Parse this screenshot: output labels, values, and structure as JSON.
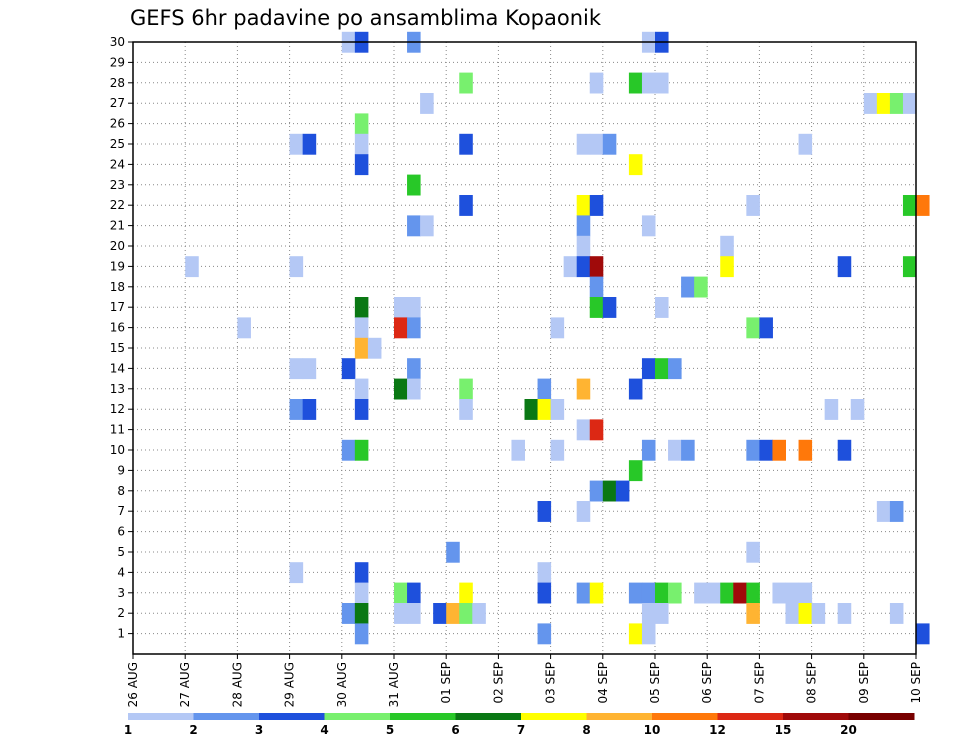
{
  "chart_data": {
    "type": "heatmap",
    "title": "GEFS 6hr padavine po ansamblima Kopaonik",
    "xlabel": "",
    "ylabel": "",
    "x_tick_labels": [
      "26 AUG",
      "27 AUG",
      "28 AUG",
      "29 AUG",
      "30 AUG",
      "31 AUG",
      "01 SEP",
      "02 SEP",
      "03 SEP",
      "04 SEP",
      "05 SEP",
      "06 SEP",
      "07 SEP",
      "08 SEP",
      "09 SEP",
      "10 SEP"
    ],
    "y_tick_labels": [
      "1",
      "2",
      "3",
      "4",
      "5",
      "6",
      "7",
      "8",
      "9",
      "10",
      "11",
      "12",
      "13",
      "14",
      "15",
      "16",
      "17",
      "18",
      "19",
      "20",
      "21",
      "22",
      "23",
      "24",
      "25",
      "26",
      "27",
      "28",
      "29",
      "30"
    ],
    "x_unit": "6-hour step (4 per day) from 26 AUG",
    "ylim": [
      1,
      30
    ],
    "grid": true,
    "legend": {
      "placement": "bottom",
      "labels": [
        "1",
        "2",
        "3",
        "4",
        "5",
        "6",
        "7",
        "8",
        "10",
        "12",
        "15",
        "20"
      ],
      "colors": [
        "#b4c8f5",
        "#6495ed",
        "#1e50dc",
        "#78f06e",
        "#28c828",
        "#0a7814",
        "#ffff00",
        "#ffb432",
        "#ff780a",
        "#dc2814",
        "#a00a0a",
        "#780000"
      ]
    },
    "level_colors": [
      "#b4c8f5",
      "#6495ed",
      "#1e50dc",
      "#78f06e",
      "#28c828",
      "#0a7814",
      "#ffff00",
      "#ffb432",
      "#ff780a",
      "#dc2814",
      "#a00a0a",
      "#780000"
    ],
    "cells": [
      [
        16,
        30,
        1
      ],
      [
        17,
        30,
        3
      ],
      [
        21,
        30,
        2
      ],
      [
        39,
        30,
        1
      ],
      [
        40,
        30,
        3
      ],
      [
        25,
        28,
        4
      ],
      [
        35,
        28,
        1
      ],
      [
        38,
        28,
        5
      ],
      [
        39,
        28,
        1
      ],
      [
        40,
        28,
        1
      ],
      [
        22,
        27,
        1
      ],
      [
        56,
        27,
        1
      ],
      [
        57,
        27,
        7
      ],
      [
        58,
        27,
        4
      ],
      [
        59,
        27,
        1
      ],
      [
        17,
        26,
        4
      ],
      [
        12,
        25,
        1
      ],
      [
        13,
        25,
        3
      ],
      [
        17,
        25,
        1
      ],
      [
        25,
        25,
        3
      ],
      [
        34,
        25,
        1
      ],
      [
        35,
        25,
        1
      ],
      [
        36,
        25,
        2
      ],
      [
        51,
        25,
        1
      ],
      [
        17,
        24,
        3
      ],
      [
        38,
        24,
        7
      ],
      [
        21,
        23,
        5
      ],
      [
        25,
        22,
        3
      ],
      [
        34,
        22,
        7
      ],
      [
        35,
        22,
        3
      ],
      [
        47,
        22,
        1
      ],
      [
        59,
        22,
        5
      ],
      [
        60,
        22,
        9
      ],
      [
        21,
        21,
        2
      ],
      [
        22,
        21,
        1
      ],
      [
        34,
        21,
        2
      ],
      [
        39,
        21,
        1
      ],
      [
        34,
        20,
        1
      ],
      [
        45,
        20,
        1
      ],
      [
        4,
        19,
        1
      ],
      [
        12,
        19,
        1
      ],
      [
        33,
        19,
        1
      ],
      [
        34,
        19,
        3
      ],
      [
        35,
        19,
        11
      ],
      [
        45,
        19,
        7
      ],
      [
        54,
        19,
        3
      ],
      [
        59,
        19,
        5
      ],
      [
        35,
        18,
        2
      ],
      [
        42,
        18,
        2
      ],
      [
        43,
        18,
        4
      ],
      [
        17,
        17,
        6
      ],
      [
        20,
        17,
        1
      ],
      [
        21,
        17,
        1
      ],
      [
        35,
        17,
        5
      ],
      [
        36,
        17,
        3
      ],
      [
        40,
        17,
        1
      ],
      [
        8,
        16,
        1
      ],
      [
        17,
        16,
        1
      ],
      [
        20,
        16,
        10
      ],
      [
        21,
        16,
        2
      ],
      [
        32,
        16,
        1
      ],
      [
        47,
        16,
        4
      ],
      [
        48,
        16,
        3
      ],
      [
        17,
        15,
        8
      ],
      [
        18,
        15,
        1
      ],
      [
        12,
        14,
        1
      ],
      [
        13,
        14,
        1
      ],
      [
        16,
        14,
        3
      ],
      [
        21,
        14,
        2
      ],
      [
        39,
        14,
        3
      ],
      [
        40,
        14,
        5
      ],
      [
        41,
        14,
        2
      ],
      [
        17,
        13,
        1
      ],
      [
        20,
        13,
        6
      ],
      [
        21,
        13,
        1
      ],
      [
        25,
        13,
        4
      ],
      [
        31,
        13,
        2
      ],
      [
        34,
        13,
        8
      ],
      [
        38,
        13,
        3
      ],
      [
        12,
        12,
        2
      ],
      [
        13,
        12,
        3
      ],
      [
        17,
        12,
        3
      ],
      [
        25,
        12,
        1
      ],
      [
        30,
        12,
        6
      ],
      [
        31,
        12,
        7
      ],
      [
        32,
        12,
        1
      ],
      [
        53,
        12,
        1
      ],
      [
        55,
        12,
        1
      ],
      [
        34,
        11,
        1
      ],
      [
        35,
        11,
        10
      ],
      [
        16,
        10,
        2
      ],
      [
        17,
        10,
        5
      ],
      [
        29,
        10,
        1
      ],
      [
        32,
        10,
        1
      ],
      [
        39,
        10,
        2
      ],
      [
        41,
        10,
        1
      ],
      [
        42,
        10,
        2
      ],
      [
        47,
        10,
        2
      ],
      [
        48,
        10,
        3
      ],
      [
        49,
        10,
        9
      ],
      [
        51,
        10,
        9
      ],
      [
        54,
        10,
        3
      ],
      [
        38,
        9,
        5
      ],
      [
        35,
        8,
        2
      ],
      [
        36,
        8,
        6
      ],
      [
        37,
        8,
        3
      ],
      [
        31,
        7,
        3
      ],
      [
        34,
        7,
        1
      ],
      [
        57,
        7,
        1
      ],
      [
        58,
        7,
        2
      ],
      [
        24,
        5,
        2
      ],
      [
        47,
        5,
        1
      ],
      [
        12,
        4,
        1
      ],
      [
        17,
        4,
        3
      ],
      [
        31,
        4,
        1
      ],
      [
        17,
        3,
        1
      ],
      [
        20,
        3,
        4
      ],
      [
        21,
        3,
        3
      ],
      [
        25,
        3,
        7
      ],
      [
        31,
        3,
        3
      ],
      [
        34,
        3,
        2
      ],
      [
        35,
        3,
        7
      ],
      [
        38,
        3,
        2
      ],
      [
        39,
        3,
        2
      ],
      [
        40,
        3,
        5
      ],
      [
        41,
        3,
        4
      ],
      [
        43,
        3,
        1
      ],
      [
        44,
        3,
        1
      ],
      [
        45,
        3,
        5
      ],
      [
        46,
        3,
        11
      ],
      [
        47,
        3,
        5
      ],
      [
        49,
        3,
        1
      ],
      [
        50,
        3,
        1
      ],
      [
        51,
        3,
        1
      ],
      [
        16,
        2,
        2
      ],
      [
        17,
        2,
        6
      ],
      [
        20,
        2,
        1
      ],
      [
        21,
        2,
        1
      ],
      [
        23,
        2,
        3
      ],
      [
        24,
        2,
        8
      ],
      [
        25,
        2,
        4
      ],
      [
        26,
        2,
        1
      ],
      [
        39,
        2,
        1
      ],
      [
        40,
        2,
        1
      ],
      [
        47,
        2,
        8
      ],
      [
        50,
        2,
        1
      ],
      [
        51,
        2,
        7
      ],
      [
        52,
        2,
        1
      ],
      [
        54,
        2,
        1
      ],
      [
        58,
        2,
        1
      ],
      [
        17,
        1,
        2
      ],
      [
        31,
        1,
        2
      ],
      [
        38,
        1,
        7
      ],
      [
        39,
        1,
        1
      ],
      [
        60,
        1,
        3
      ]
    ]
  }
}
